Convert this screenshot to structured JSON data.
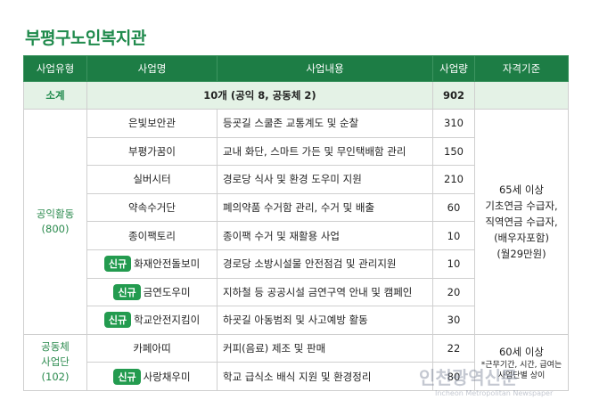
{
  "title": "부평구노인복지관",
  "header": [
    "사업유형",
    "사업명",
    "사업내용",
    "사업량",
    "자격기준"
  ],
  "subtotal": {
    "label": "소계",
    "summary": "10개 (공익 8, 공동체 2)",
    "amount": 902
  },
  "groups": [
    {
      "type": [
        "공익활동",
        "(800)"
      ],
      "qualification": [
        "65세 이상",
        "기초연금 수급자,",
        "직역연금 수급자,",
        "(배우자포함)",
        "(월29만원)"
      ],
      "rows": [
        {
          "name": "은빛보안관",
          "content": "등굣길 스쿨존 교통계도 및 순찰",
          "amount": 310
        },
        {
          "name": "부평가꿈이",
          "content": "교내 화단, 스마트 가든 및 무인택배함 관리",
          "amount": 150
        },
        {
          "name": "실버시터",
          "content": "경로당 식사 및 환경 도우미 지원",
          "amount": 210
        },
        {
          "name": "약속수거단",
          "content": "폐의약품 수거함 관리, 수거 및 배출",
          "amount": 60
        },
        {
          "name": "종이팩토리",
          "content": "종이팩 수거 및 재활용 사업",
          "amount": 10
        },
        {
          "badge": "신규",
          "name": "화재안전돌보미",
          "content": "경로당 소방시설물 안전점검 및 관리지원",
          "amount": 10
        },
        {
          "badge": "신규",
          "name": "금연도우미",
          "content": "지하철 등 공공시설 금연구역 안내 및 캠페인",
          "amount": 20
        },
        {
          "badge": "신규",
          "name": "학교안전지킴이",
          "content": "하굣길 아동범죄 및 사고예방 활동",
          "amount": 30
        }
      ]
    },
    {
      "type": [
        "공동체",
        "사업단",
        "(102)"
      ],
      "qualification": [
        "60세 이상",
        "*근무기간, 시간, 급여는",
        "사업단별 상이"
      ],
      "rows": [
        {
          "name": "카페아띠",
          "content": "커피(음료) 제조 및 판매",
          "amount": 22
        },
        {
          "badge": "신규",
          "name": "사랑채우미",
          "content": "학교 급식소 배식 지원 및 환경정리",
          "amount": 80
        }
      ]
    }
  ],
  "watermark": {
    "name": "인천광역신문",
    "english": "Incheon Metropolitan Newspaper"
  }
}
